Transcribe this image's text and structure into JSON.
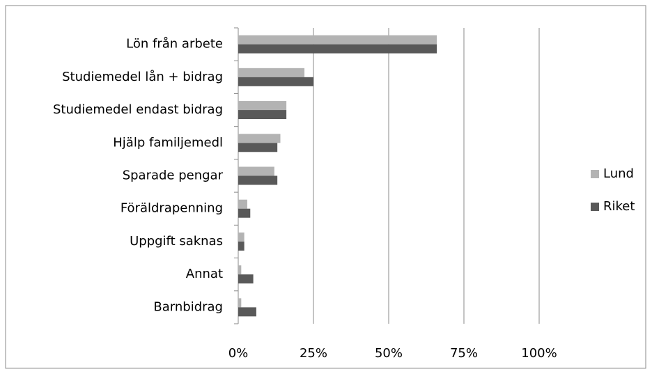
{
  "chart_data": {
    "type": "hbar",
    "categories": [
      "Lön från arbete",
      "Studiemedel lån + bidrag",
      "Studiemedel endast bidrag",
      "Hjälp familjemedl",
      "Sparade pengar",
      "Föräldrapenning",
      "Uppgift saknas",
      "Annat",
      "Barnbidrag"
    ],
    "series": [
      {
        "name": "Lund",
        "color": "#b3b3b3",
        "values": [
          66,
          22,
          16,
          14,
          12,
          3,
          2,
          1,
          1
        ]
      },
      {
        "name": "Riket",
        "color": "#595959",
        "values": [
          66,
          25,
          16,
          13,
          13,
          4,
          2,
          5,
          6
        ]
      }
    ],
    "xlim": [
      0,
      100
    ],
    "xticks": [
      {
        "value": 0,
        "label": "0%"
      },
      {
        "value": 25,
        "label": "25%"
      },
      {
        "value": 50,
        "label": "50%"
      },
      {
        "value": 75,
        "label": "75%"
      },
      {
        "value": 100,
        "label": "100%"
      }
    ],
    "grid": true,
    "legend": "right"
  }
}
